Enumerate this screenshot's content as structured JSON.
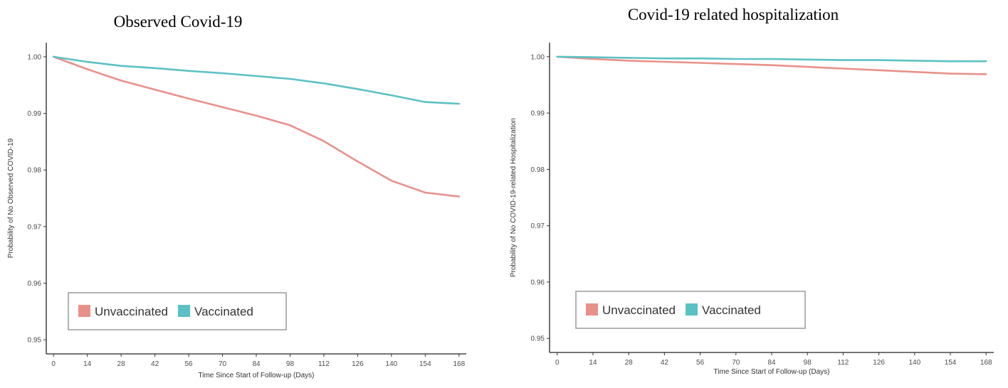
{
  "chart_data": [
    {
      "type": "line",
      "title": "Observed Covid-19",
      "xlabel": "Time Since Start of Follow-up (Days)",
      "ylabel": "Probability of No Observed COVID-19",
      "x_ticks": [
        0,
        14,
        28,
        42,
        56,
        70,
        84,
        98,
        112,
        126,
        140,
        154,
        168
      ],
      "y_ticks": [
        0.95,
        0.96,
        0.97,
        0.98,
        0.99,
        1.0
      ],
      "y_tick_labels": [
        "0.95",
        "0.96",
        "0.97",
        "0.98",
        "0.99",
        "1.00"
      ],
      "xlim": [
        -3,
        171
      ],
      "ylim": [
        0.9475,
        1.0025
      ],
      "legend_position": "bottom-left",
      "grid": false,
      "series": [
        {
          "name": "Unvaccinated",
          "color": "#e8918a",
          "x": [
            0,
            14,
            28,
            42,
            56,
            70,
            84,
            98,
            112,
            126,
            140,
            154,
            168
          ],
          "y": [
            1.0,
            0.9978,
            0.9958,
            0.9942,
            0.9926,
            0.9911,
            0.9896,
            0.9879,
            0.9851,
            0.9815,
            0.9781,
            0.976,
            0.9753
          ]
        },
        {
          "name": "Vaccinated",
          "color": "#5cc1c4",
          "x": [
            0,
            14,
            28,
            42,
            56,
            70,
            84,
            98,
            112,
            126,
            140,
            154,
            168
          ],
          "y": [
            1.0,
            0.9991,
            0.9984,
            0.998,
            0.9975,
            0.9971,
            0.9966,
            0.9961,
            0.9953,
            0.9943,
            0.9932,
            0.992,
            0.9917
          ]
        }
      ]
    },
    {
      "type": "line",
      "title": "Covid-19 related hospitalization",
      "xlabel": "Time Since Start of Follow-up (Days)",
      "ylabel": "Probability of No COVID-19-related Hospitalization",
      "x_ticks": [
        0,
        14,
        28,
        42,
        56,
        70,
        84,
        98,
        112,
        126,
        140,
        154,
        168
      ],
      "y_ticks": [
        0.95,
        0.96,
        0.97,
        0.98,
        0.99,
        1.0
      ],
      "y_tick_labels": [
        "0.95",
        "0.96",
        "0.97",
        "0.98",
        "0.99",
        "1.00"
      ],
      "xlim": [
        -3,
        171
      ],
      "ylim": [
        0.9475,
        1.0025
      ],
      "legend_position": "bottom-left",
      "grid": false,
      "series": [
        {
          "name": "Unvaccinated",
          "color": "#e8918a",
          "x": [
            0,
            14,
            28,
            42,
            56,
            70,
            84,
            98,
            112,
            126,
            140,
            154,
            168
          ],
          "y": [
            1.0,
            0.9996,
            0.9993,
            0.9991,
            0.9989,
            0.9987,
            0.9985,
            0.9982,
            0.9979,
            0.9976,
            0.9973,
            0.997,
            0.9969
          ]
        },
        {
          "name": "Vaccinated",
          "color": "#5cc1c4",
          "x": [
            0,
            14,
            28,
            42,
            56,
            70,
            84,
            98,
            112,
            126,
            140,
            154,
            168
          ],
          "y": [
            1.0,
            0.9999,
            0.9998,
            0.9997,
            0.9997,
            0.9996,
            0.9996,
            0.9995,
            0.9994,
            0.9994,
            0.9993,
            0.9992,
            0.9992
          ]
        }
      ]
    }
  ]
}
